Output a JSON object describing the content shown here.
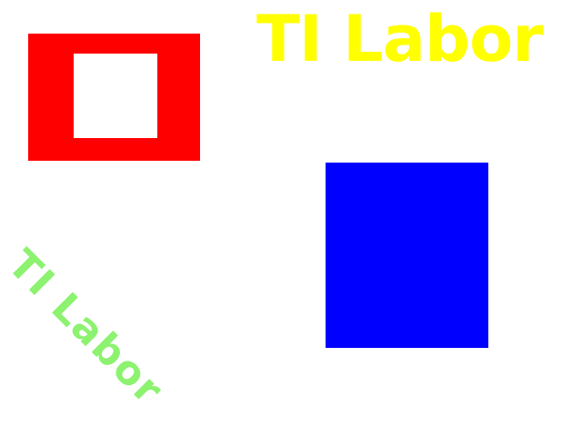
{
  "texts": {
    "yellow_label": "TI Labor",
    "green_label": "TI Labor"
  },
  "colors": {
    "background": "#ffffff",
    "red_frame": "#ff0000",
    "blue_square": "#0000ff",
    "yellow_text": "#ffff00",
    "green_text": "#8cf26f"
  }
}
